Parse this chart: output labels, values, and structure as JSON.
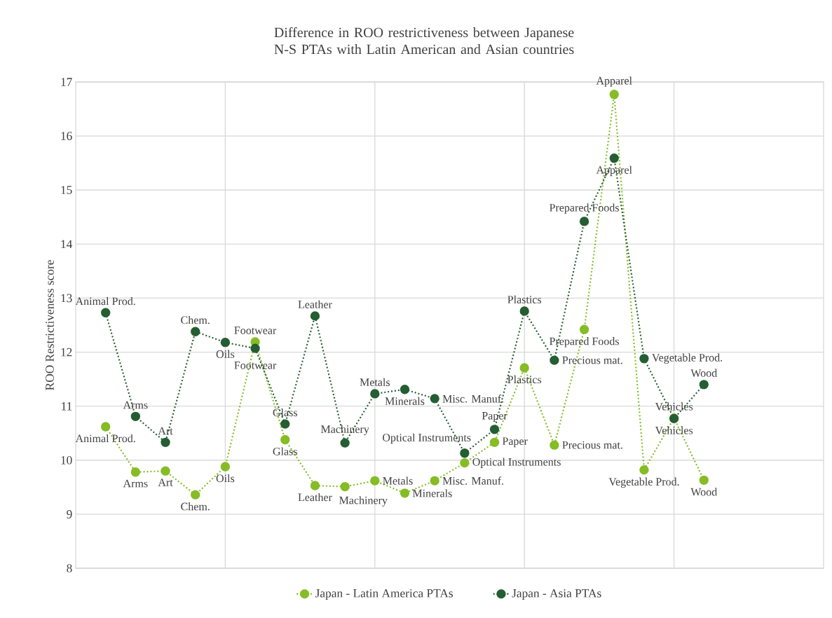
{
  "chart_data": {
    "type": "line",
    "title": "Difference in ROO restrictiveness between Japanese N-S PTAs with Latin American and Asian countries",
    "ylabel": "ROO Restrictiveness score",
    "categories": [
      null,
      null,
      null,
      null,
      null,
      null,
      null,
      null,
      null,
      null,
      null,
      null,
      null,
      null,
      null,
      null,
      null,
      null,
      null,
      null,
      null
    ],
    "ylim": [
      8,
      17
    ],
    "yticks": [
      8,
      9,
      10,
      11,
      12,
      13,
      14,
      15,
      16,
      17
    ],
    "tick_labels": "y",
    "grid": true,
    "legend": "bottom",
    "marker": "circle",
    "line_style": "dotted",
    "series": [
      {
        "name": "Japan - Latin America PTAs",
        "color": "#86bc25",
        "values": [
          10.62,
          9.78,
          9.8,
          9.36,
          9.88,
          12.19,
          10.38,
          9.53,
          9.51,
          9.62,
          9.39,
          9.62,
          9.95,
          10.33,
          11.71,
          10.28,
          12.42,
          16.77,
          9.82,
          10.78,
          9.63
        ],
        "value_labels": [
          "Animal Prod.",
          "Arms",
          "Art",
          "Chem.",
          "Oils",
          "Footwear",
          "Glass",
          "Leather",
          "Machinery",
          "Metals",
          "Minerals",
          "Misc. Manuf.",
          "Optical Instruments",
          "Paper",
          "Plastics",
          "Precious mat.",
          "Prepared Foods",
          "Apparel",
          "Vegetable Prod.",
          "Vehicles",
          "Wood"
        ]
      },
      {
        "name": "Japan - Asia PTAs",
        "color": "#255e32",
        "values": [
          12.73,
          10.81,
          10.33,
          12.38,
          12.18,
          12.07,
          10.67,
          12.67,
          10.32,
          11.23,
          11.31,
          11.14,
          10.13,
          10.57,
          12.76,
          11.85,
          14.42,
          15.59,
          11.88,
          10.77,
          11.4
        ],
        "value_labels": [
          "Animal Prod.",
          "Arms",
          "Art",
          "Chem.",
          "Oils",
          "Footwear",
          "Glass",
          "Leather",
          "Machinery",
          "Metals",
          "Minerals",
          "Misc. Manuf.",
          "Optical Instruments",
          "Paper",
          "Plastics",
          "Precious mat.",
          "Prepared Foods",
          "Apparel",
          "Vegetable Prod.",
          "Vehicles",
          "Wood"
        ]
      }
    ]
  }
}
